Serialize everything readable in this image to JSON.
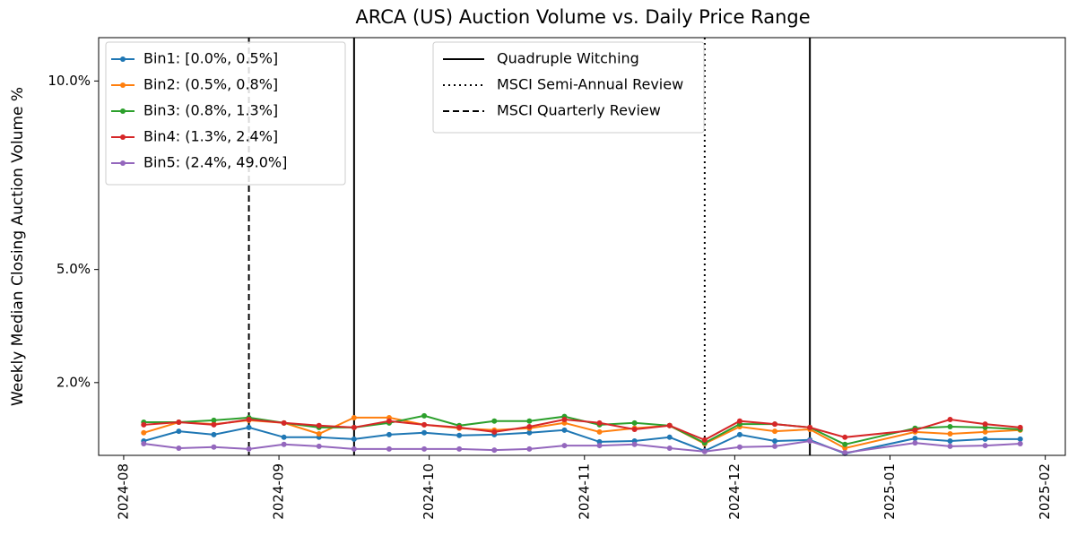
{
  "chart_data": {
    "type": "line",
    "title": "ARCA (US) Auction Volume vs. Daily Price Range",
    "ylabel": "Weekly Median Closing Auction Volume %",
    "x": [
      "2024-08-05",
      "2024-08-12",
      "2024-08-19",
      "2024-08-26",
      "2024-09-02",
      "2024-09-09",
      "2024-09-16",
      "2024-09-23",
      "2024-09-30",
      "2024-10-07",
      "2024-10-14",
      "2024-10-21",
      "2024-10-28",
      "2024-11-04",
      "2024-11-11",
      "2024-11-18",
      "2024-11-25",
      "2024-12-02",
      "2024-12-09",
      "2024-12-16",
      "2024-12-23",
      "2025-01-06",
      "2025-01-13",
      "2025-01-20",
      "2025-01-27"
    ],
    "series": [
      {
        "name": "Bin1: [0.0%, 0.5%]",
        "color": "#1f77b4",
        "values": [
          0.45,
          0.71,
          0.62,
          0.81,
          0.55,
          0.55,
          0.5,
          0.62,
          0.67,
          0.6,
          0.62,
          0.67,
          0.74,
          0.43,
          0.45,
          0.55,
          0.19,
          0.62,
          0.45,
          0.48,
          0.12,
          0.52,
          0.45,
          0.5,
          0.5
        ]
      },
      {
        "name": "Bin2: (0.5%, 0.8%]",
        "color": "#ff7f0e",
        "values": [
          0.67,
          0.95,
          0.9,
          1.0,
          0.93,
          0.64,
          1.07,
          1.07,
          0.88,
          0.79,
          0.74,
          0.79,
          0.93,
          0.69,
          0.79,
          0.86,
          0.38,
          0.83,
          0.71,
          0.76,
          0.26,
          0.69,
          0.64,
          0.69,
          0.74
        ]
      },
      {
        "name": "Bin3: (0.8%, 1.3%]",
        "color": "#2ca02c",
        "values": [
          0.95,
          0.95,
          1.0,
          1.07,
          0.93,
          0.81,
          0.81,
          0.93,
          1.12,
          0.86,
          0.98,
          0.98,
          1.1,
          0.88,
          0.93,
          0.86,
          0.4,
          0.9,
          0.9,
          0.81,
          0.36,
          0.79,
          0.83,
          0.81,
          0.76
        ]
      },
      {
        "name": "Bin4: (1.3%, 2.4%]",
        "color": "#d62728",
        "values": [
          0.88,
          0.95,
          0.88,
          1.02,
          0.93,
          0.86,
          0.81,
          0.98,
          0.88,
          0.81,
          0.69,
          0.83,
          1.02,
          0.93,
          0.76,
          0.86,
          0.48,
          0.98,
          0.9,
          0.81,
          0.55,
          0.74,
          1.02,
          0.9,
          0.81
        ]
      },
      {
        "name": "Bin5: (2.4%, 49.0%]",
        "color": "#9467bd",
        "values": [
          0.38,
          0.26,
          0.29,
          0.24,
          0.36,
          0.31,
          0.24,
          0.24,
          0.24,
          0.24,
          0.21,
          0.24,
          0.33,
          0.33,
          0.36,
          0.26,
          0.17,
          0.29,
          0.31,
          0.45,
          0.14,
          0.4,
          0.31,
          0.33,
          0.38
        ]
      }
    ],
    "events": [
      {
        "name": "Quadruple Witching",
        "style": "solid",
        "x": [
          "2024-09-16",
          "2024-12-16"
        ]
      },
      {
        "name": "MSCI Semi-Annual Review",
        "style": "dotted",
        "x": [
          "2024-11-25"
        ]
      },
      {
        "name": "MSCI Quarterly Review",
        "style": "dashed",
        "x": [
          "2024-08-26"
        ]
      }
    ],
    "xlim": [
      "2024-07-27",
      "2025-02-05"
    ],
    "xticks": [
      "2024-08",
      "2024-09",
      "2024-10",
      "2024-11",
      "2024-12",
      "2025-01",
      "2025-02"
    ],
    "ylim": [
      0.07,
      11.15
    ],
    "yticks": [
      {
        "value": 2,
        "label": "2.0%"
      },
      {
        "value": 5,
        "label": "5.0%"
      },
      {
        "value": 10,
        "label": "10.0%"
      }
    ],
    "legend": "upper left",
    "events_legend": "upper center"
  }
}
